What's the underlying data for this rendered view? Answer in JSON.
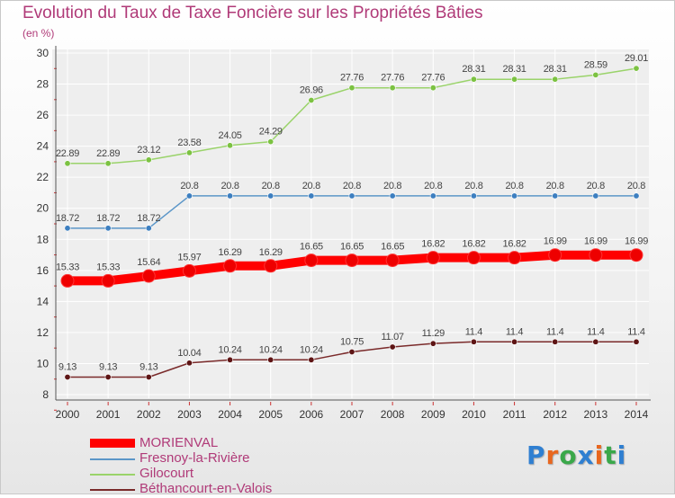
{
  "header": {
    "title": "Evolution du Taux de Taxe Foncière sur les Propriétés Bâties",
    "unit": "(en %)"
  },
  "colors": {
    "title": "#b03a78",
    "axis": "#444444",
    "grid": "#ffffff"
  },
  "logo": {
    "letters": [
      {
        "ch": "P",
        "color": "#2f7fd1"
      },
      {
        "ch": "r",
        "color": "#e8671f"
      },
      {
        "ch": "o",
        "color": "#3aa84a"
      },
      {
        "ch": "x",
        "color": "#2f7fd1"
      },
      {
        "ch": "i",
        "color": "#e8671f"
      },
      {
        "ch": "t",
        "color": "#3aa84a"
      },
      {
        "ch": "i",
        "color": "#2f7fd1"
      }
    ]
  },
  "chart_data": {
    "type": "line",
    "title": "Evolution du Taux de Taxe Foncière sur les Propriétés Bâties",
    "ylabel": "(en %)",
    "xlabel": "",
    "x": [
      "2000",
      "2001",
      "2002",
      "2003",
      "2004",
      "2005",
      "2006",
      "2007",
      "2008",
      "2009",
      "2010",
      "2011",
      "2012",
      "2013",
      "2014"
    ],
    "ylim": [
      8,
      30
    ],
    "yticks": [
      "8",
      "10",
      "12",
      "14",
      "16",
      "18",
      "20",
      "22",
      "24",
      "26",
      "28",
      "30"
    ],
    "grid": true,
    "legend_position": "bottom-left",
    "series": [
      {
        "name": "MORIENVAL",
        "color": "#ff0000",
        "marker_color": "#ee0000",
        "style": "thick",
        "values": [
          15.33,
          15.33,
          15.64,
          15.97,
          16.29,
          16.29,
          16.65,
          16.65,
          16.65,
          16.82,
          16.82,
          16.82,
          16.99,
          16.99,
          16.99
        ],
        "labels": [
          "15.33",
          "15.33",
          "15.64",
          "15.97",
          "16.29",
          "16.29",
          "16.65",
          "16.65",
          "16.65",
          "16.82",
          "16.82",
          "16.82",
          "16.99",
          "16.99",
          "16.99"
        ]
      },
      {
        "name": "Fresnoy-la-Rivière",
        "color": "#5b96c8",
        "marker_color": "#3d7fc0",
        "style": "thin",
        "values": [
          18.72,
          18.72,
          18.72,
          20.8,
          20.8,
          20.8,
          20.8,
          20.8,
          20.8,
          20.8,
          20.8,
          20.8,
          20.8,
          20.8,
          20.8
        ],
        "labels": [
          "18.72",
          "18.72",
          "18.72",
          "20.8",
          "20.8",
          "20.8",
          "20.8",
          "20.8",
          "20.8",
          "20.8",
          "20.8",
          "20.8",
          "20.8",
          "20.8",
          "20.8"
        ]
      },
      {
        "name": "Gilocourt",
        "color": "#9ad36a",
        "marker_color": "#7cc242",
        "style": "thin",
        "values": [
          22.89,
          22.89,
          23.12,
          23.58,
          24.05,
          24.29,
          26.96,
          27.76,
          27.76,
          27.76,
          28.31,
          28.31,
          28.31,
          28.59,
          29.01
        ],
        "labels": [
          "22.89",
          "22.89",
          "23.12",
          "23.58",
          "24.05",
          "24.29",
          "26.96",
          "27.76",
          "27.76",
          "27.76",
          "28.31",
          "28.31",
          "28.31",
          "28.59",
          "29.01"
        ]
      },
      {
        "name": "Béthancourt-en-Valois",
        "color": "#7a2a2a",
        "marker_color": "#5e1515",
        "style": "thin",
        "values": [
          9.13,
          9.13,
          9.13,
          10.04,
          10.24,
          10.24,
          10.24,
          10.75,
          11.07,
          11.29,
          11.4,
          11.4,
          11.4,
          11.4,
          11.4
        ],
        "labels": [
          "9.13",
          "9.13",
          "9.13",
          "10.04",
          "10.24",
          "10.24",
          "10.24",
          "10.75",
          "11.07",
          "11.29",
          "11.4",
          "11.4",
          "11.4",
          "11.4",
          "11.4"
        ]
      }
    ]
  },
  "legend": {
    "items": [
      {
        "label": "MORIENVAL"
      },
      {
        "label": "Fresnoy-la-Rivière"
      },
      {
        "label": "Gilocourt"
      },
      {
        "label": "Béthancourt-en-Valois"
      }
    ]
  }
}
